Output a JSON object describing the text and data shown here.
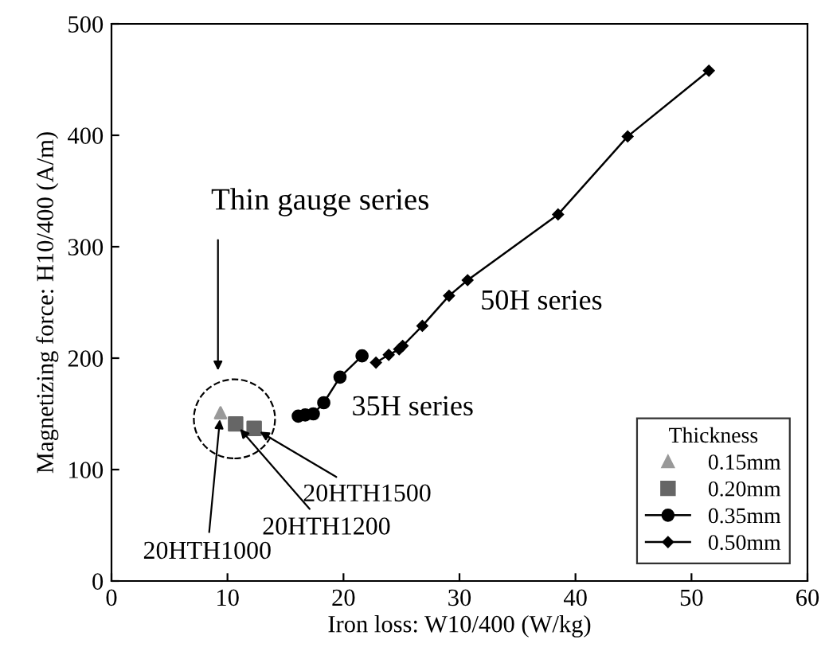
{
  "chart_data": {
    "type": "line",
    "xlabel": "Iron loss: W10/400 (W/kg)",
    "ylabel": "Magnetizing force: H10/400 (A/m)",
    "legend_title": "Thickness",
    "legend": "bottom right",
    "grid": false,
    "xlim": [
      0,
      60
    ],
    "ylim": [
      0,
      500
    ],
    "xticks": [
      0,
      10,
      20,
      30,
      40,
      50,
      60
    ],
    "yticks": [
      0,
      100,
      200,
      300,
      400,
      500
    ],
    "series": [
      {
        "name": "0.15mm",
        "type": "scatter",
        "marker": "triangle",
        "color": "#999999",
        "x": [
          9.4
        ],
        "values": [
          151
        ]
      },
      {
        "name": "0.20mm",
        "type": "scatter",
        "marker": "square",
        "color": "#666666",
        "x": [
          10.7,
          12.3
        ],
        "values": [
          141,
          137
        ]
      },
      {
        "name": "0.35mm",
        "marker": "circle",
        "color": "#000000",
        "x": [
          16.1,
          16.7,
          17.4,
          18.3,
          19.7,
          21.6
        ],
        "values": [
          148,
          149,
          150,
          160,
          183,
          202
        ]
      },
      {
        "name": "0.50mm",
        "marker": "diamond",
        "color": "#000000",
        "x": [
          22.8,
          23.9,
          24.8,
          25.1,
          26.8,
          29.1,
          30.7,
          38.5,
          44.5,
          51.5
        ],
        "values": [
          196,
          203,
          208,
          211,
          229,
          256,
          270,
          329,
          399,
          458
        ]
      }
    ],
    "annotations": [
      "Thin gauge series",
      "50H series",
      "35H series",
      {
        "text": "20HTH1500",
        "x": 12.3,
        "y": 137
      },
      {
        "text": "20HTH1200",
        "x": 10.7,
        "y": 141
      },
      {
        "text": "20HTH1000",
        "x": 9.4,
        "y": 151
      }
    ]
  }
}
